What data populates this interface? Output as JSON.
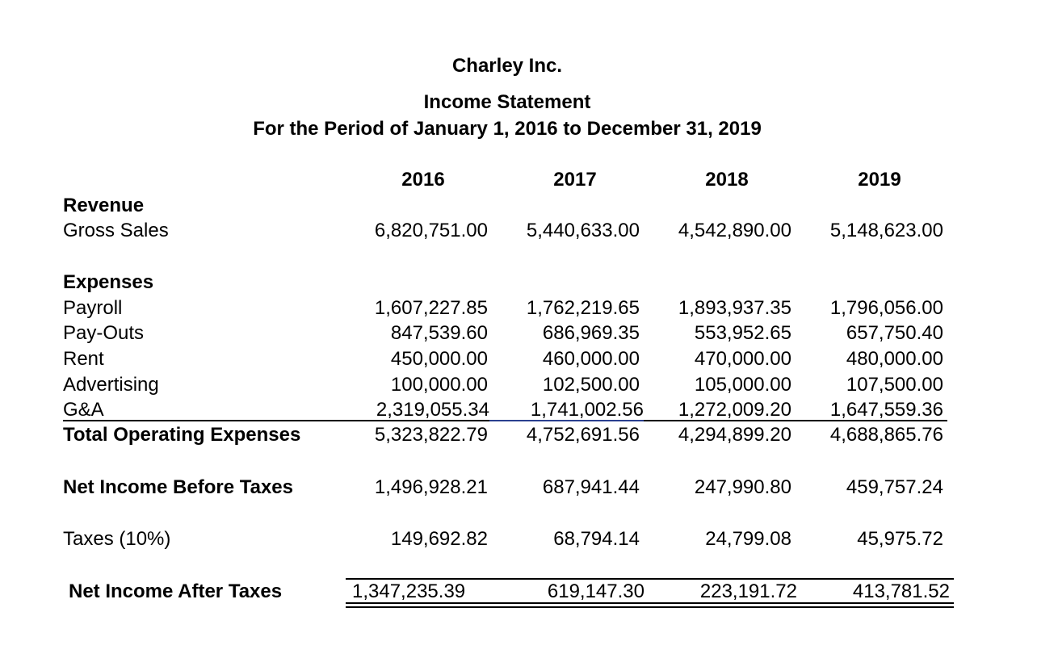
{
  "header": {
    "company": "Charley Inc.",
    "title": "Income Statement",
    "period": "For the Period of January 1, 2016 to December 31, 2019"
  },
  "years": [
    "2016",
    "2017",
    "2018",
    "2019"
  ],
  "revenue": {
    "heading": "Revenue",
    "gross_sales": {
      "label": "Gross Sales",
      "values": [
        "6,820,751.00",
        "5,440,633.00",
        "4,542,890.00",
        "5,148,623.00"
      ]
    }
  },
  "expenses": {
    "heading": "Expenses",
    "rows": [
      {
        "label": "Payroll",
        "values": [
          "1,607,227.85",
          "1,762,219.65",
          "1,893,937.35",
          "1,796,056.00"
        ]
      },
      {
        "label": "Pay-Outs",
        "values": [
          "847,539.60",
          "686,969.35",
          "553,952.65",
          "657,750.40"
        ]
      },
      {
        "label": "Rent",
        "values": [
          "450,000.00",
          "460,000.00",
          "470,000.00",
          "480,000.00"
        ]
      },
      {
        "label": "Advertising",
        "values": [
          "100,000.00",
          "102,500.00",
          "105,000.00",
          "107,500.00"
        ]
      },
      {
        "label": "G&A",
        "values": [
          "2,319,055.34",
          "1,741,002.56",
          "1,272,009.20",
          "1,647,559.36"
        ]
      }
    ],
    "total": {
      "label": "Total Operating Expenses",
      "values": [
        "5,323,822.79",
        "4,752,691.56",
        "4,294,899.20",
        "4,688,865.76"
      ]
    }
  },
  "net_before_taxes": {
    "label": "Net Income Before Taxes",
    "values": [
      "1,496,928.21",
      "687,941.44",
      "247,990.80",
      "459,757.24"
    ]
  },
  "taxes": {
    "label": "Taxes (10%)",
    "values": [
      "149,692.82",
      "68,794.14",
      "24,799.08",
      "45,975.72"
    ]
  },
  "net_after_taxes": {
    "label": "Net Income After Taxes",
    "values": [
      "1,347,235.39",
      "619,147.30",
      "223,191.72",
      "413,781.52"
    ]
  }
}
